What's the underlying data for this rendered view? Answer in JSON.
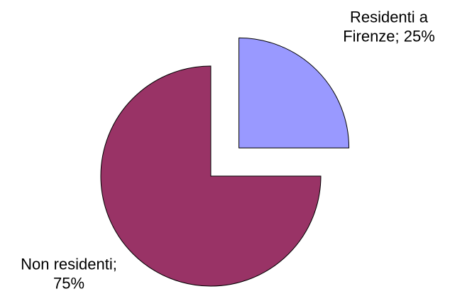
{
  "chart_data": {
    "type": "pie",
    "title": "",
    "legend": "none",
    "slices": [
      {
        "category": "Residenti a Firenze",
        "value": 25,
        "label_lines": [
          "Residenti a",
          "Firenze; 25%"
        ],
        "color": "#9999ff",
        "exploded": true
      },
      {
        "category": "Non residenti",
        "value": 75,
        "label_lines": [
          "Non residenti;",
          "75%"
        ],
        "color": "#993366",
        "exploded": false
      }
    ]
  }
}
